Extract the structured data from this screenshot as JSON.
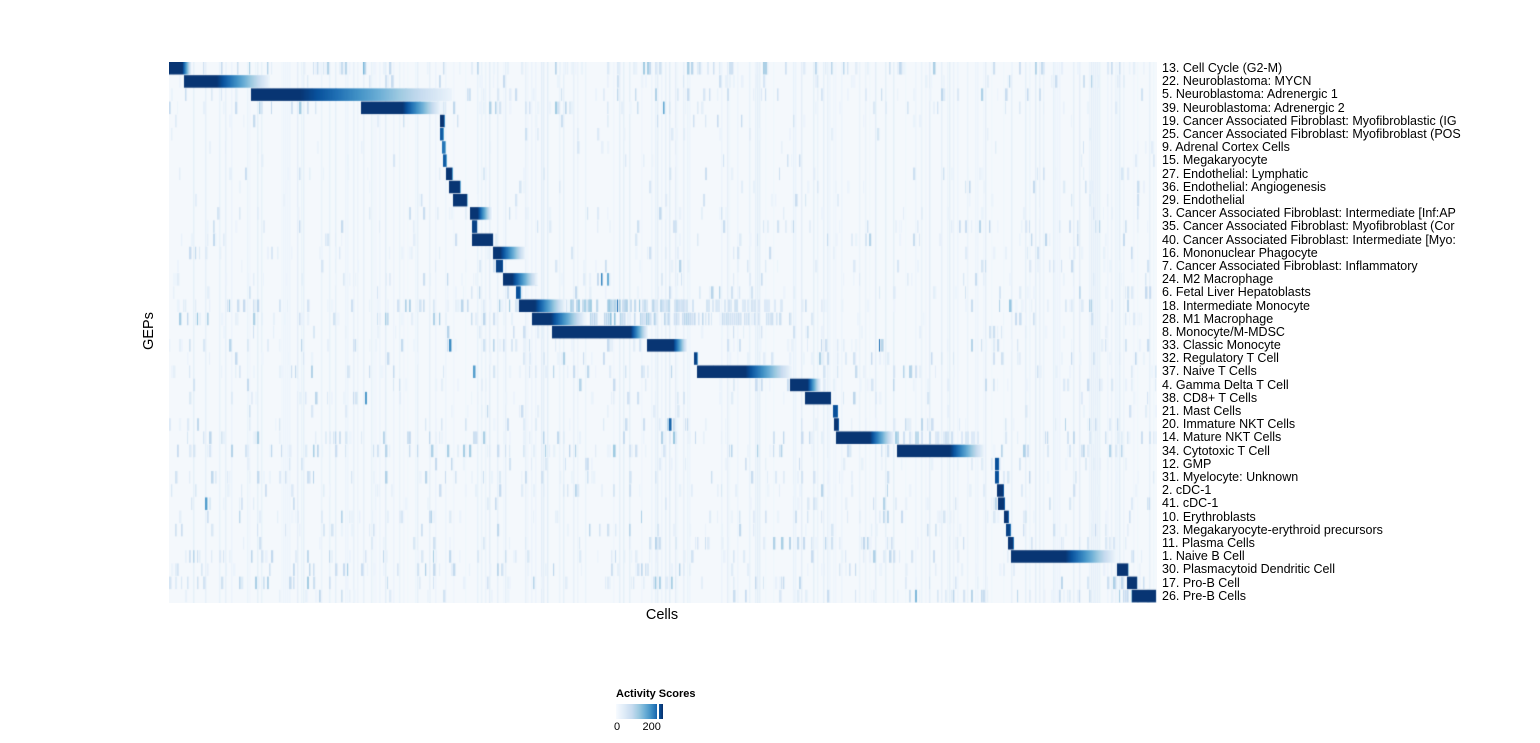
{
  "chart_data": {
    "type": "heatmap",
    "title": "",
    "xlabel": "Cells",
    "ylabel": "GEPs",
    "x_axis": {
      "tick_labels": [],
      "note": "columns are individual cells, unlabeled"
    },
    "legend": {
      "title": "Activity Scores",
      "min_label": "0",
      "tick_label": "200",
      "tick_fraction": 0.88,
      "range": [
        0,
        230
      ]
    },
    "rows": [
      {
        "label": "13. Cell Cycle (G2-M)",
        "block_start": 0.0,
        "block_core_end": 0.013,
        "block_fade_end": 0.022,
        "tail_end": 0,
        "noise": 0.5,
        "level": 1.0,
        "peak_score": 220
      },
      {
        "label": "22. Neuroblastoma: MYCN",
        "block_start": 0.016,
        "block_core_end": 0.048,
        "block_fade_end": 0.101,
        "tail_end": 0,
        "noise": 0.3,
        "level": 1.0,
        "peak_score": 220
      },
      {
        "label": "5. Neuroblastoma: Adrenergic 1",
        "block_start": 0.084,
        "block_core_end": 0.132,
        "block_fade_end": 0.285,
        "tail_end": 0,
        "noise": 0.35,
        "level": 1.0,
        "peak_score": 220
      },
      {
        "label": "39. Neuroblastoma: Adrenergic 2",
        "block_start": 0.195,
        "block_core_end": 0.236,
        "block_fade_end": 0.274,
        "tail_end": 0,
        "noise": 0.4,
        "level": 1.0,
        "peak_score": 220
      },
      {
        "label": "19. Cancer Associated Fibroblast: Myofibroblastic (IG",
        "block_start": 0.275,
        "block_core_end": 0.278,
        "block_fade_end": 0,
        "tail_end": 0,
        "noise": 0.15,
        "level": 1.0,
        "peak_score": 220
      },
      {
        "label": "25. Cancer Associated Fibroblast: Myofibroblast (POS",
        "block_start": 0.275,
        "block_core_end": 0.277,
        "block_fade_end": 0,
        "tail_end": 0,
        "noise": 0.12,
        "level": 0.85,
        "peak_score": 180
      },
      {
        "label": "9. Adrenal Cortex Cells",
        "block_start": 0.277,
        "block_core_end": 0.279,
        "block_fade_end": 0,
        "tail_end": 0,
        "noise": 0.15,
        "level": 0.75,
        "peak_score": 160
      },
      {
        "label": "15. Megakaryocyte",
        "block_start": 0.278,
        "block_core_end": 0.28,
        "block_fade_end": 0,
        "tail_end": 0,
        "noise": 0.12,
        "level": 0.85,
        "peak_score": 180
      },
      {
        "label": "27. Endothelial: Lymphatic",
        "block_start": 0.281,
        "block_core_end": 0.286,
        "block_fade_end": 0,
        "tail_end": 0,
        "noise": 0.15,
        "level": 1.0,
        "peak_score": 210
      },
      {
        "label": "36. Endothelial: Angiogenesis",
        "block_start": 0.284,
        "block_core_end": 0.294,
        "block_fade_end": 0,
        "tail_end": 0,
        "noise": 0.18,
        "level": 1.0,
        "peak_score": 210
      },
      {
        "label": "29. Endothelial",
        "block_start": 0.288,
        "block_core_end": 0.301,
        "block_fade_end": 0,
        "tail_end": 0,
        "noise": 0.18,
        "level": 1.0,
        "peak_score": 210
      },
      {
        "label": "3. Cancer Associated Fibroblast: Intermediate [Inf:AP",
        "block_start": 0.305,
        "block_core_end": 0.312,
        "block_fade_end": 0.326,
        "tail_end": 0,
        "noise": 0.3,
        "level": 1.0,
        "peak_score": 210
      },
      {
        "label": "35. Cancer Associated Fibroblast: Myofibroblast (Cor",
        "block_start": 0.307,
        "block_core_end": 0.311,
        "block_fade_end": 0,
        "tail_end": 0,
        "noise": 0.25,
        "level": 0.95,
        "peak_score": 200
      },
      {
        "label": "40. Cancer Associated Fibroblast: Intermediate [Myo:",
        "block_start": 0.307,
        "block_core_end": 0.327,
        "block_fade_end": 0,
        "tail_end": 0,
        "noise": 0.3,
        "level": 1.0,
        "peak_score": 220
      },
      {
        "label": "16. Mononuclear Phagocyte",
        "block_start": 0.328,
        "block_core_end": 0.335,
        "block_fade_end": 0.36,
        "tail_end": 0,
        "noise": 0.35,
        "level": 1.0,
        "peak_score": 210
      },
      {
        "label": "7. Cancer Associated Fibroblast: Inflammatory",
        "block_start": 0.331,
        "block_core_end": 0.337,
        "block_fade_end": 0,
        "tail_end": 0,
        "noise": 0.25,
        "level": 0.95,
        "peak_score": 200
      },
      {
        "label": "24. M2 Macrophage",
        "block_start": 0.339,
        "block_core_end": 0.347,
        "block_fade_end": 0.372,
        "tail_end": 0,
        "noise": 0.3,
        "level": 1.0,
        "peak_score": 210
      },
      {
        "label": "6. Fetal Liver Hepatoblasts",
        "block_start": 0.352,
        "block_core_end": 0.355,
        "block_fade_end": 0,
        "tail_end": 0,
        "noise": 0.25,
        "level": 0.9,
        "peak_score": 190
      },
      {
        "label": "18. Intermediate Monocyte",
        "block_start": 0.355,
        "block_core_end": 0.37,
        "block_fade_end": 0.4,
        "tail_end": 0.62,
        "noise": 0.45,
        "level": 1.0,
        "peak_score": 215
      },
      {
        "label": "28. M1 Macrophage",
        "block_start": 0.368,
        "block_core_end": 0.386,
        "block_fade_end": 0.42,
        "tail_end": 0.63,
        "noise": 0.45,
        "level": 1.0,
        "peak_score": 215
      },
      {
        "label": "8. Monocyte/M-MDSC",
        "block_start": 0.388,
        "block_core_end": 0.467,
        "block_fade_end": 0.484,
        "tail_end": 0,
        "noise": 0.4,
        "level": 1.0,
        "peak_score": 225
      },
      {
        "label": "33. Classic Monocyte",
        "block_start": 0.484,
        "block_core_end": 0.51,
        "block_fade_end": 0.524,
        "tail_end": 0,
        "noise": 0.35,
        "level": 1.0,
        "peak_score": 220
      },
      {
        "label": "32. Regulatory T Cell",
        "block_start": 0.532,
        "block_core_end": 0.534,
        "block_fade_end": 0,
        "tail_end": 0,
        "noise": 0.35,
        "level": 0.95,
        "peak_score": 200
      },
      {
        "label": "37. Naive T Cells",
        "block_start": 0.535,
        "block_core_end": 0.583,
        "block_fade_end": 0.629,
        "tail_end": 0,
        "noise": 0.5,
        "level": 1.0,
        "peak_score": 225
      },
      {
        "label": "4. Gamma Delta T Cell",
        "block_start": 0.629,
        "block_core_end": 0.646,
        "block_fade_end": 0.659,
        "tail_end": 0,
        "noise": 0.4,
        "level": 1.0,
        "peak_score": 215
      },
      {
        "label": "38. CD8+ T Cells",
        "block_start": 0.644,
        "block_core_end": 0.669,
        "block_fade_end": 0,
        "tail_end": 0,
        "noise": 0.35,
        "level": 1.0,
        "peak_score": 215
      },
      {
        "label": "21. Mast Cells",
        "block_start": 0.673,
        "block_core_end": 0.676,
        "block_fade_end": 0,
        "tail_end": 0,
        "noise": 0.2,
        "level": 0.9,
        "peak_score": 190
      },
      {
        "label": "20. Immature NKT Cells",
        "block_start": 0.674,
        "block_core_end": 0.677,
        "block_fade_end": 0,
        "tail_end": 0,
        "noise": 0.3,
        "level": 1.0,
        "peak_score": 205
      },
      {
        "label": "14. Mature NKT Cells",
        "block_start": 0.676,
        "block_core_end": 0.709,
        "block_fade_end": 0.733,
        "tail_end": 0.82,
        "noise": 0.45,
        "level": 1.0,
        "peak_score": 220
      },
      {
        "label": "34. Cytotoxic T Cell",
        "block_start": 0.737,
        "block_core_end": 0.79,
        "block_fade_end": 0.824,
        "tail_end": 0,
        "noise": 0.4,
        "level": 1.0,
        "peak_score": 225
      },
      {
        "label": "12. GMP",
        "block_start": 0.837,
        "block_core_end": 0.839,
        "block_fade_end": 0,
        "tail_end": 0,
        "noise": 0.25,
        "level": 0.9,
        "peak_score": 190
      },
      {
        "label": "31. Myelocyte: Unknown",
        "block_start": 0.837,
        "block_core_end": 0.839,
        "block_fade_end": 0,
        "tail_end": 0,
        "noise": 0.35,
        "level": 0.9,
        "peak_score": 190
      },
      {
        "label": "2. cDC-1",
        "block_start": 0.839,
        "block_core_end": 0.844,
        "block_fade_end": 0,
        "tail_end": 0,
        "noise": 0.3,
        "level": 1.0,
        "peak_score": 210
      },
      {
        "label": "41. cDC-1",
        "block_start": 0.84,
        "block_core_end": 0.845,
        "block_fade_end": 0,
        "tail_end": 0,
        "noise": 0.3,
        "level": 1.0,
        "peak_score": 210
      },
      {
        "label": "10. Erythroblasts",
        "block_start": 0.846,
        "block_core_end": 0.849,
        "block_fade_end": 0,
        "tail_end": 0,
        "noise": 0.3,
        "level": 1.0,
        "peak_score": 205
      },
      {
        "label": "23. Megakaryocyte-erythroid precursors",
        "block_start": 0.848,
        "block_core_end": 0.851,
        "block_fade_end": 0,
        "tail_end": 0,
        "noise": 0.35,
        "level": 0.95,
        "peak_score": 200
      },
      {
        "label": "11. Plasma Cells",
        "block_start": 0.85,
        "block_core_end": 0.854,
        "block_fade_end": 0,
        "tail_end": 0,
        "noise": 0.4,
        "level": 1.0,
        "peak_score": 205
      },
      {
        "label": "1. Naive B Cell",
        "block_start": 0.853,
        "block_core_end": 0.907,
        "block_fade_end": 0.957,
        "tail_end": 0,
        "noise": 0.35,
        "level": 1.0,
        "peak_score": 225
      },
      {
        "label": "30. Plasmacytoid Dendritic Cell",
        "block_start": 0.96,
        "block_core_end": 0.97,
        "block_fade_end": 0,
        "tail_end": 0,
        "noise": 0.35,
        "level": 1.0,
        "peak_score": 215
      },
      {
        "label": "17. Pro-B Cell",
        "block_start": 0.97,
        "block_core_end": 0.979,
        "block_fade_end": 0,
        "tail_end": 0,
        "noise": 0.45,
        "level": 1.0,
        "peak_score": 215
      },
      {
        "label": "26. Pre-B Cells",
        "block_start": 0.975,
        "block_core_end": 0.998,
        "block_fade_end": 0,
        "tail_end": 0,
        "noise": 0.45,
        "level": 1.0,
        "peak_score": 225
      }
    ]
  },
  "style": {
    "palette": [
      "#f7fbff",
      "#deebf7",
      "#c6dbef",
      "#9ecae1",
      "#6baed6",
      "#4292c6",
      "#2171b5",
      "#08519c",
      "#08306b"
    ],
    "plot_background": "#f4f8fc",
    "high_color": "#08306b",
    "page_background": "#ffffff"
  }
}
